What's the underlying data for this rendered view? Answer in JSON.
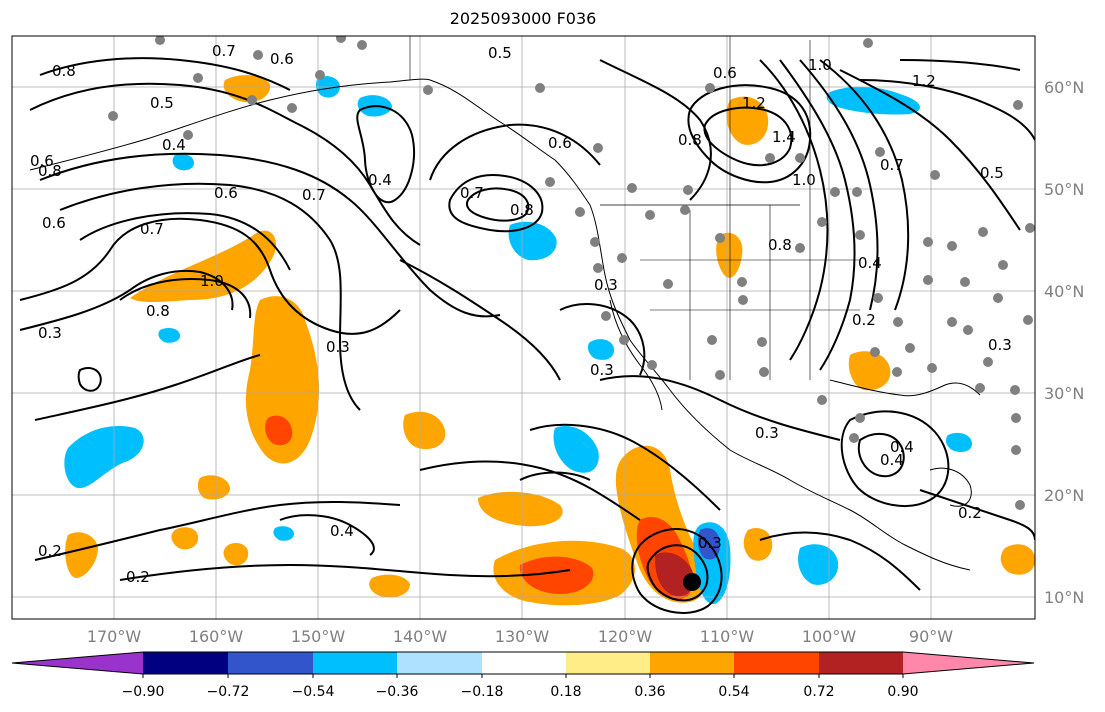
{
  "title": "2025093000 F036",
  "map": {
    "lat_labels": [
      "60°N",
      "50°N",
      "40°N",
      "30°N",
      "20°N",
      "10°N"
    ],
    "lon_labels": [
      "170°W",
      "160°W",
      "150°W",
      "140°W",
      "130°W",
      "120°W",
      "110°W",
      "100°W",
      "90°W"
    ],
    "contour_labels": [
      "0.8",
      "0.7",
      "0.6",
      "0.5",
      "0.4",
      "0.5",
      "0.6",
      "1.0",
      "1.2",
      "0.6",
      "0.8",
      "0.7",
      "0.6",
      "0.4",
      "0.7",
      "0.8",
      "0.7",
      "0.6",
      "0.3",
      "1.0",
      "0.8",
      "0.3",
      "0.3",
      "0.4",
      "0.2",
      "0.2",
      "0.3",
      "0.3",
      "0.8",
      "0.7",
      "0.5",
      "0.4",
      "0.2",
      "0.3",
      "0.4",
      "1.4",
      "1.2",
      "1.0",
      "0.8",
      "0.6",
      "0.2",
      "0.4",
      "0.3"
    ]
  },
  "colorbar": {
    "ticks": [
      "−0.90",
      "−0.72",
      "−0.54",
      "−0.36",
      "−0.18",
      "0.18",
      "0.36",
      "0.54",
      "0.72",
      "0.90"
    ],
    "colors": {
      "lt_m090": "#9933cc",
      "m090_m072": "#000080",
      "m072_m054": "#3355cc",
      "m054_m036": "#00bfff",
      "m036_m018": "#aee0ff",
      "m018_018": "#ffffff",
      "p018_036": "#ffee88",
      "p036_054": "#ffa500",
      "p054_072": "#ff4500",
      "p072_090": "#b22222",
      "gt_090": "#ff88aa"
    }
  },
  "colors": {
    "grid": "#aaaaaa",
    "coast": "#000000",
    "station_dot": "#808080",
    "orange": "#ffa500",
    "red": "#ff4500",
    "darkred": "#b22222",
    "blue": "#00bfff",
    "darkblue": "#3355cc",
    "yellow": "#ffee88"
  },
  "markers": {
    "storm_center_icon": "black-dot"
  }
}
